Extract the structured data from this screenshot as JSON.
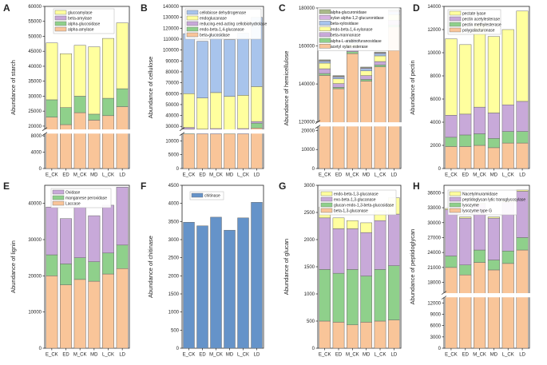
{
  "chart_data": [
    {
      "letter": "A",
      "type": "bar",
      "stacked": true,
      "ylabel": "Abundance of starch",
      "categories": [
        "E_CK",
        "ED",
        "M_CK",
        "MD",
        "L_CK",
        "LD"
      ],
      "break": {
        "low": 8500,
        "high": 19000
      },
      "ylim": [
        0,
        60000
      ],
      "yticks": [
        0,
        4000,
        8000,
        20000,
        25000,
        30000,
        35000,
        40000,
        45000,
        50000,
        55000,
        60000
      ],
      "series": [
        {
          "name": "alpha-amylase",
          "color": "#f9c599",
          "values": [
            23000,
            20500,
            24500,
            22000,
            23500,
            26500
          ]
        },
        {
          "name": "alpha-glucosidase",
          "color": "#8fd08b",
          "values": [
            5800,
            5700,
            5500,
            2000,
            5800,
            6000
          ]
        },
        {
          "name": "beta-amylase",
          "color": "#c8a9d9",
          "values": [
            0,
            0,
            0,
            0,
            0,
            0
          ]
        },
        {
          "name": "glucoamylase",
          "color": "#ffff9e",
          "values": [
            19000,
            18000,
            17000,
            22500,
            20000,
            22000
          ]
        }
      ]
    },
    {
      "letter": "B",
      "type": "bar",
      "stacked": true,
      "ylabel": "Abundance of cellulose",
      "categories": [
        "E_CK",
        "ED",
        "M_CK",
        "MD",
        "L_CK",
        "LD"
      ],
      "break": {
        "low": 12500,
        "high": 27500
      },
      "ylim": [
        0,
        140000
      ],
      "yticks": [
        0,
        5000,
        10000,
        30000,
        40000,
        50000,
        60000,
        70000,
        80000,
        90000,
        100000,
        110000,
        120000,
        130000,
        140000
      ],
      "series": [
        {
          "name": "beta-glucosidase",
          "color": "#f9c599",
          "values": [
            26000,
            24500,
            25000,
            24000,
            25000,
            28500
          ]
        },
        {
          "name": "endo-beta-1,4-glucanase",
          "color": "#8fd08b",
          "values": [
            1500,
            1500,
            1500,
            1500,
            1500,
            4500
          ]
        },
        {
          "name": "reducing-end-acting cellobiohydrolase",
          "color": "#c8a9d9",
          "values": [
            1500,
            1500,
            1500,
            1500,
            1500,
            1500
          ]
        },
        {
          "name": "endoglucanase",
          "color": "#ffff9e",
          "values": [
            31000,
            28500,
            33000,
            30500,
            30500,
            32000
          ]
        },
        {
          "name": "cellobiose dehydrogenase",
          "color": "#a8c4ec",
          "values": [
            55000,
            52000,
            54000,
            52000,
            57000,
            63500
          ]
        }
      ]
    },
    {
      "letter": "C",
      "type": "bar",
      "stacked": true,
      "ylabel": "Abundance of hemicellulose",
      "categories": [
        "E_CK",
        "ED",
        "M_CK",
        "MD",
        "L_CK",
        "LD"
      ],
      "break": {
        "low": 22000,
        "high": 120000
      },
      "ylim": [
        0,
        180000
      ],
      "yticks": [
        0,
        10000,
        20000,
        120000,
        140000,
        160000,
        180000
      ],
      "series": [
        {
          "name": "acetyl xylan esterase",
          "color": "#f9c599",
          "values": [
            144500,
            137500,
            156000,
            141500,
            149000,
            170000
          ]
        },
        {
          "name": "alpha-L-arabinofuranosidase",
          "color": "#8fd08b",
          "values": [
            1000,
            700,
            1000,
            900,
            1000,
            1000
          ]
        },
        {
          "name": "beta-mannanase",
          "color": "#c8a9d9",
          "values": [
            2500,
            2000,
            2000,
            2000,
            1800,
            2500
          ]
        },
        {
          "name": "endo-beta-1,4-xylanase",
          "color": "#ffff9e",
          "values": [
            3000,
            2500,
            2500,
            2500,
            3000,
            3000
          ]
        },
        {
          "name": "beta-xylosidase",
          "color": "#a8c4ec",
          "values": [
            900,
            900,
            1500,
            1200,
            1200,
            1500
          ]
        },
        {
          "name": "xylan alpha-1,2-glucuronidase",
          "color": "#d7b2e2",
          "values": [
            400,
            400,
            400,
            400,
            400,
            500
          ]
        },
        {
          "name": "alpha-glucuronidase",
          "color": "#a9b88a",
          "values": [
            400,
            400,
            400,
            400,
            400,
            500
          ]
        }
      ]
    },
    {
      "letter": "D",
      "type": "bar",
      "stacked": true,
      "ylabel": "Abundance of pectin",
      "categories": [
        "E_CK",
        "ED",
        "M_CK",
        "MD",
        "L_CK",
        "LD"
      ],
      "ylim": [
        0,
        14000
      ],
      "yticks": [
        0,
        2000,
        4000,
        6000,
        8000,
        10000,
        12000,
        14000
      ],
      "series": [
        {
          "name": "polygalacturonase",
          "color": "#f9c599",
          "values": [
            1900,
            1900,
            2000,
            1800,
            2200,
            2200
          ]
        },
        {
          "name": "pectin methylesterase",
          "color": "#8fd08b",
          "values": [
            800,
            1000,
            1000,
            800,
            1000,
            1000
          ]
        },
        {
          "name": "pectin acetylesterase",
          "color": "#c8a9d9",
          "values": [
            1900,
            1800,
            2300,
            2200,
            2300,
            2600
          ]
        },
        {
          "name": "pectate lyase",
          "color": "#ffff9e",
          "values": [
            6600,
            6000,
            7200,
            6600,
            6500,
            7800
          ]
        }
      ]
    },
    {
      "letter": "E",
      "type": "bar",
      "stacked": true,
      "ylabel": "Abundance of lignin",
      "categories": [
        "E_CK",
        "ED",
        "M_CK",
        "MD",
        "L_CK",
        "LD"
      ],
      "ylim": [
        0,
        45000
      ],
      "yticks": [
        0,
        10000,
        20000,
        30000,
        40000
      ],
      "series": [
        {
          "name": "Laccase",
          "color": "#f9c599",
          "values": [
            20000,
            17500,
            19000,
            18500,
            20500,
            22000
          ]
        },
        {
          "name": "manganese peroxidase",
          "color": "#8fd08b",
          "values": [
            5800,
            5800,
            6000,
            5400,
            5800,
            6500
          ]
        },
        {
          "name": "Oxidase",
          "color": "#c8a9d9",
          "values": [
            13200,
            12500,
            14000,
            12700,
            13200,
            16000
          ]
        }
      ]
    },
    {
      "letter": "F",
      "type": "bar",
      "stacked": true,
      "ylabel": "Abundance of chitinase",
      "categories": [
        "E_CK",
        "ED",
        "M_CK",
        "MD",
        "L_CK",
        "LD"
      ],
      "ylim": [
        0,
        4500
      ],
      "yticks": [
        0,
        500,
        1000,
        1500,
        2000,
        2500,
        3000,
        3500,
        4000,
        4500
      ],
      "series": [
        {
          "name": "chitinase",
          "color": "#6593c9",
          "values": [
            3480,
            3380,
            3620,
            3260,
            3600,
            4030
          ]
        }
      ]
    },
    {
      "letter": "G",
      "type": "bar",
      "stacked": true,
      "ylabel": "Abundance of glucan",
      "categories": [
        "E_CK",
        "ED",
        "M_CK",
        "MD",
        "L_CK",
        "LD"
      ],
      "ylim": [
        0,
        3000
      ],
      "yticks": [
        0,
        500,
        1000,
        1500,
        2000,
        2500,
        3000
      ],
      "series": [
        {
          "name": "beta-1,3-glucanase",
          "color": "#f9c599",
          "values": [
            500,
            480,
            430,
            480,
            500,
            520
          ]
        },
        {
          "name": "glucan endo-1,3-beta-glucosidase",
          "color": "#8fd08b",
          "values": [
            950,
            900,
            1020,
            850,
            950,
            1000
          ]
        },
        {
          "name": "exo-beta-1,3-glucanase",
          "color": "#c8a9d9",
          "values": [
            950,
            820,
            750,
            800,
            900,
            950
          ]
        },
        {
          "name": "endo-beta-1,3-glucanase",
          "color": "#ffff9e",
          "values": [
            200,
            200,
            150,
            180,
            180,
            300
          ]
        }
      ]
    },
    {
      "letter": "H",
      "type": "bar",
      "stacked": true,
      "ylabel": "Abundance of peptidoglycan",
      "categories": [
        "E_CK",
        "ED",
        "M_CK",
        "MD",
        "L_CK",
        "LD"
      ],
      "break": {
        "low": 13400,
        "high": 15900
      },
      "ylim": [
        0,
        37500
      ],
      "yticks": [
        0,
        3000,
        6000,
        9000,
        12000,
        18000,
        21000,
        24000,
        27000,
        30000,
        33000,
        36000
      ],
      "series": [
        {
          "name": "lysozyme type G",
          "color": "#f9c599",
          "values": [
            21000,
            19500,
            22000,
            20500,
            21800,
            24500
          ]
        },
        {
          "name": "lysozyme",
          "color": "#8fd08b",
          "values": [
            2300,
            2000,
            2500,
            2000,
            2500,
            2500
          ]
        },
        {
          "name": "peptidoglycan lytic transglycosylase",
          "color": "#c8a9d9",
          "values": [
            9300,
            9400,
            9200,
            8400,
            9800,
            9300
          ]
        },
        {
          "name": "Nacetylmuramidase",
          "color": "#ffff9e",
          "values": [
            250,
            250,
            250,
            250,
            250,
            250
          ]
        }
      ]
    }
  ]
}
